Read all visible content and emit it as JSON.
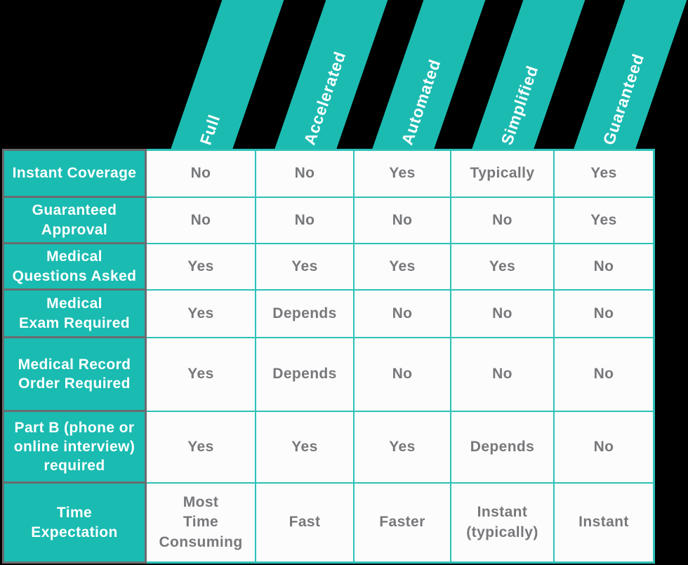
{
  "colors": {
    "background": "#000000",
    "ribbon": "#1CBBB1",
    "header_bg": "#1ABBB1",
    "grid_line": "#2CC1B7",
    "gray_border": "#6A6B6E",
    "header_text": "#FFFFFF",
    "cell_text": "#77787B",
    "cell_bg": "#FCFCFC"
  },
  "table": {
    "columns": [
      {
        "label": "Full"
      },
      {
        "label": "Accelerated"
      },
      {
        "label": "Automated"
      },
      {
        "label": "Simplified"
      },
      {
        "label": "Guaranteed"
      }
    ],
    "rows": [
      {
        "header": "Instant Coverage",
        "values": [
          "No",
          "No",
          "Yes",
          "Typically",
          "Yes"
        ]
      },
      {
        "header": "Guaranteed\nApproval",
        "values": [
          "No",
          "No",
          "No",
          "No",
          "Yes"
        ]
      },
      {
        "header": "Medical\nQuestions Asked",
        "values": [
          "Yes",
          "Yes",
          "Yes",
          "Yes",
          "No"
        ]
      },
      {
        "header": "Medical\nExam Required",
        "values": [
          "Yes",
          "Depends",
          "No",
          "No",
          "No"
        ]
      },
      {
        "header": "Medical Record\nOrder Required",
        "values": [
          "Yes",
          "Depends",
          "No",
          "No",
          "No"
        ]
      },
      {
        "header": "Part B (phone or\nonline interview)\nrequired",
        "values": [
          "Yes",
          "Yes",
          "Yes",
          "Depends",
          "No"
        ]
      },
      {
        "header": "Time\nExpectation",
        "values": [
          "Most\nTime\nConsuming",
          "Fast",
          "Faster",
          "Instant\n(typically)",
          "Instant"
        ]
      }
    ]
  },
  "chart_data": {
    "type": "table",
    "columns": [
      "Full",
      "Accelerated",
      "Automated",
      "Simplified",
      "Guaranteed"
    ],
    "row_headers": [
      "Instant Coverage",
      "Guaranteed Approval",
      "Medical Questions Asked",
      "Medical Exam Required",
      "Medical Record Order Required",
      "Part B (phone or online interview) required",
      "Time Expectation"
    ],
    "rows": [
      [
        "No",
        "No",
        "Yes",
        "Typically",
        "Yes"
      ],
      [
        "No",
        "No",
        "No",
        "No",
        "Yes"
      ],
      [
        "Yes",
        "Yes",
        "Yes",
        "Yes",
        "No"
      ],
      [
        "Yes",
        "Depends",
        "No",
        "No",
        "No"
      ],
      [
        "Yes",
        "Depends",
        "No",
        "No",
        "No"
      ],
      [
        "Yes",
        "Yes",
        "Yes",
        "Depends",
        "No"
      ],
      [
        "Most Time Consuming",
        "Fast",
        "Faster",
        "Instant (typically)",
        "Instant"
      ]
    ],
    "legend_position": "none",
    "grid": true
  }
}
